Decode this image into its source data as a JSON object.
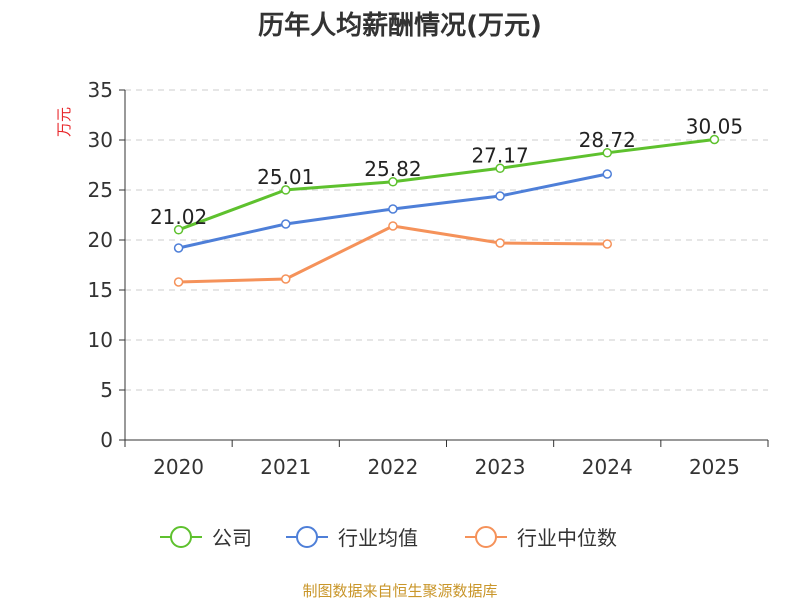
{
  "chart_data": {
    "type": "line",
    "title": "历年人均薪酬情况(万元)",
    "ylabel": "万元",
    "xlabel": "",
    "categories": [
      "2020",
      "2021",
      "2022",
      "2023",
      "2024",
      "2025"
    ],
    "ylim": [
      0,
      35
    ],
    "yticks": [
      0,
      5,
      10,
      15,
      20,
      25,
      30,
      35
    ],
    "grid": true,
    "legend_position": "bottom",
    "series": [
      {
        "name": "公司",
        "color": "#5ec12e",
        "values": [
          21.02,
          25.01,
          25.82,
          27.17,
          28.72,
          30.05
        ],
        "labels": [
          "21.02",
          "25.01",
          "25.82",
          "27.17",
          "28.72",
          "30.05"
        ]
      },
      {
        "name": "行业均值",
        "color": "#4e7fd8",
        "values": [
          19.2,
          21.6,
          23.1,
          24.4,
          26.6,
          null
        ]
      },
      {
        "name": "行业中位数",
        "color": "#f5925a",
        "values": [
          15.8,
          16.1,
          21.4,
          19.7,
          19.6,
          null
        ]
      }
    ]
  },
  "source": "制图数据来自恒生聚源数据库"
}
